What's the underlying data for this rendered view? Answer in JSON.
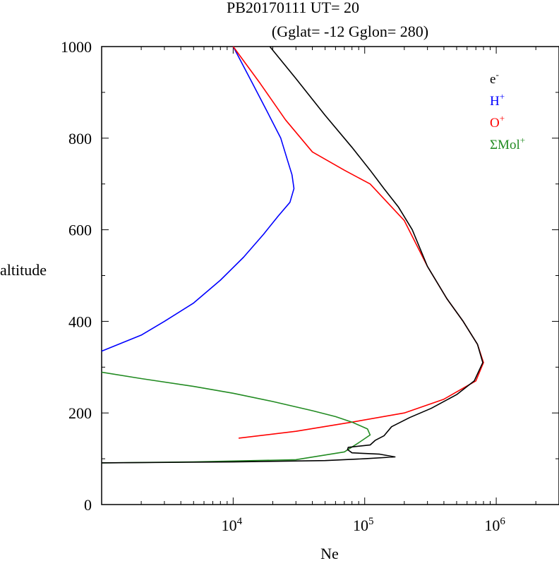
{
  "title": {
    "line1": "PB20170111   UT=  20",
    "line2": "(Gglat= -12   Gglon=  280)"
  },
  "chart_data": {
    "type": "line",
    "xscale": "log",
    "xlabel": "Ne",
    "ylabel": "altitude",
    "xlim": [
      1000,
      3000000
    ],
    "ylim": [
      0,
      1000
    ],
    "x_tick_labels": [
      {
        "base": "10",
        "exp": "4",
        "value": 10000
      },
      {
        "base": "10",
        "exp": "5",
        "value": 100000
      },
      {
        "base": "10",
        "exp": "6",
        "value": 1000000
      }
    ],
    "y_tick_labels": [
      {
        "label": "0",
        "value": 0
      },
      {
        "label": "200",
        "value": 200
      },
      {
        "label": "400",
        "value": 400
      },
      {
        "label": "600",
        "value": 600
      },
      {
        "label": "800",
        "value": 800
      },
      {
        "label": "1000",
        "value": 1000
      }
    ],
    "y_ticks_minor": [
      100,
      300,
      500,
      700,
      900
    ],
    "grid": false,
    "legend_position": "top-right",
    "series": [
      {
        "name": "e",
        "sup": "-",
        "color": "#000000",
        "points": [
          [
            1000,
            91
          ],
          [
            10000,
            93
          ],
          [
            50000,
            96
          ],
          [
            100000,
            100
          ],
          [
            170000,
            104
          ],
          [
            130000,
            110
          ],
          [
            80000,
            113
          ],
          [
            74000,
            120
          ],
          [
            75000,
            125
          ],
          [
            110000,
            130
          ],
          [
            120000,
            140
          ],
          [
            140000,
            150
          ],
          [
            160000,
            170
          ],
          [
            220000,
            190
          ],
          [
            320000,
            210
          ],
          [
            500000,
            240
          ],
          [
            680000,
            270
          ],
          [
            790000,
            310
          ],
          [
            720000,
            350
          ],
          [
            560000,
            400
          ],
          [
            420000,
            450
          ],
          [
            300000,
            520
          ],
          [
            230000,
            600
          ],
          [
            180000,
            650
          ],
          [
            140000,
            690
          ],
          [
            110000,
            730
          ],
          [
            80000,
            780
          ],
          [
            50000,
            850
          ],
          [
            30000,
            930
          ],
          [
            19000,
            1000
          ]
        ]
      },
      {
        "name": "H",
        "sup": "+",
        "color": "#0000ff",
        "points": [
          [
            1000,
            335
          ],
          [
            2000,
            370
          ],
          [
            3000,
            400
          ],
          [
            5000,
            440
          ],
          [
            8000,
            490
          ],
          [
            12000,
            540
          ],
          [
            17000,
            590
          ],
          [
            22000,
            630
          ],
          [
            27000,
            660
          ],
          [
            29000,
            690
          ],
          [
            28000,
            720
          ],
          [
            26000,
            750
          ],
          [
            23000,
            800
          ],
          [
            18000,
            860
          ],
          [
            14000,
            920
          ],
          [
            10000,
            1000
          ]
        ]
      },
      {
        "name": "O",
        "sup": "+",
        "color": "#ff0000",
        "points": [
          [
            11000,
            145
          ],
          [
            30000,
            160
          ],
          [
            80000,
            180
          ],
          [
            200000,
            200
          ],
          [
            400000,
            230
          ],
          [
            700000,
            270
          ],
          [
            800000,
            310
          ],
          [
            720000,
            350
          ],
          [
            560000,
            400
          ],
          [
            420000,
            450
          ],
          [
            300000,
            520
          ],
          [
            200000,
            620
          ],
          [
            110000,
            700
          ],
          [
            70000,
            730
          ],
          [
            40000,
            770
          ],
          [
            25000,
            840
          ],
          [
            16000,
            920
          ],
          [
            10000,
            1000
          ]
        ]
      },
      {
        "name": "ΣMol",
        "sup": "+",
        "color": "#228b22",
        "points": [
          [
            1000,
            289
          ],
          [
            2000,
            275
          ],
          [
            5000,
            258
          ],
          [
            10000,
            243
          ],
          [
            20000,
            225
          ],
          [
            40000,
            205
          ],
          [
            60000,
            192
          ],
          [
            80000,
            180
          ],
          [
            105000,
            165
          ],
          [
            110000,
            152
          ],
          [
            90000,
            135
          ],
          [
            70000,
            115
          ],
          [
            30000,
            98
          ],
          [
            5000,
            93
          ],
          [
            1000,
            91
          ]
        ]
      }
    ]
  }
}
